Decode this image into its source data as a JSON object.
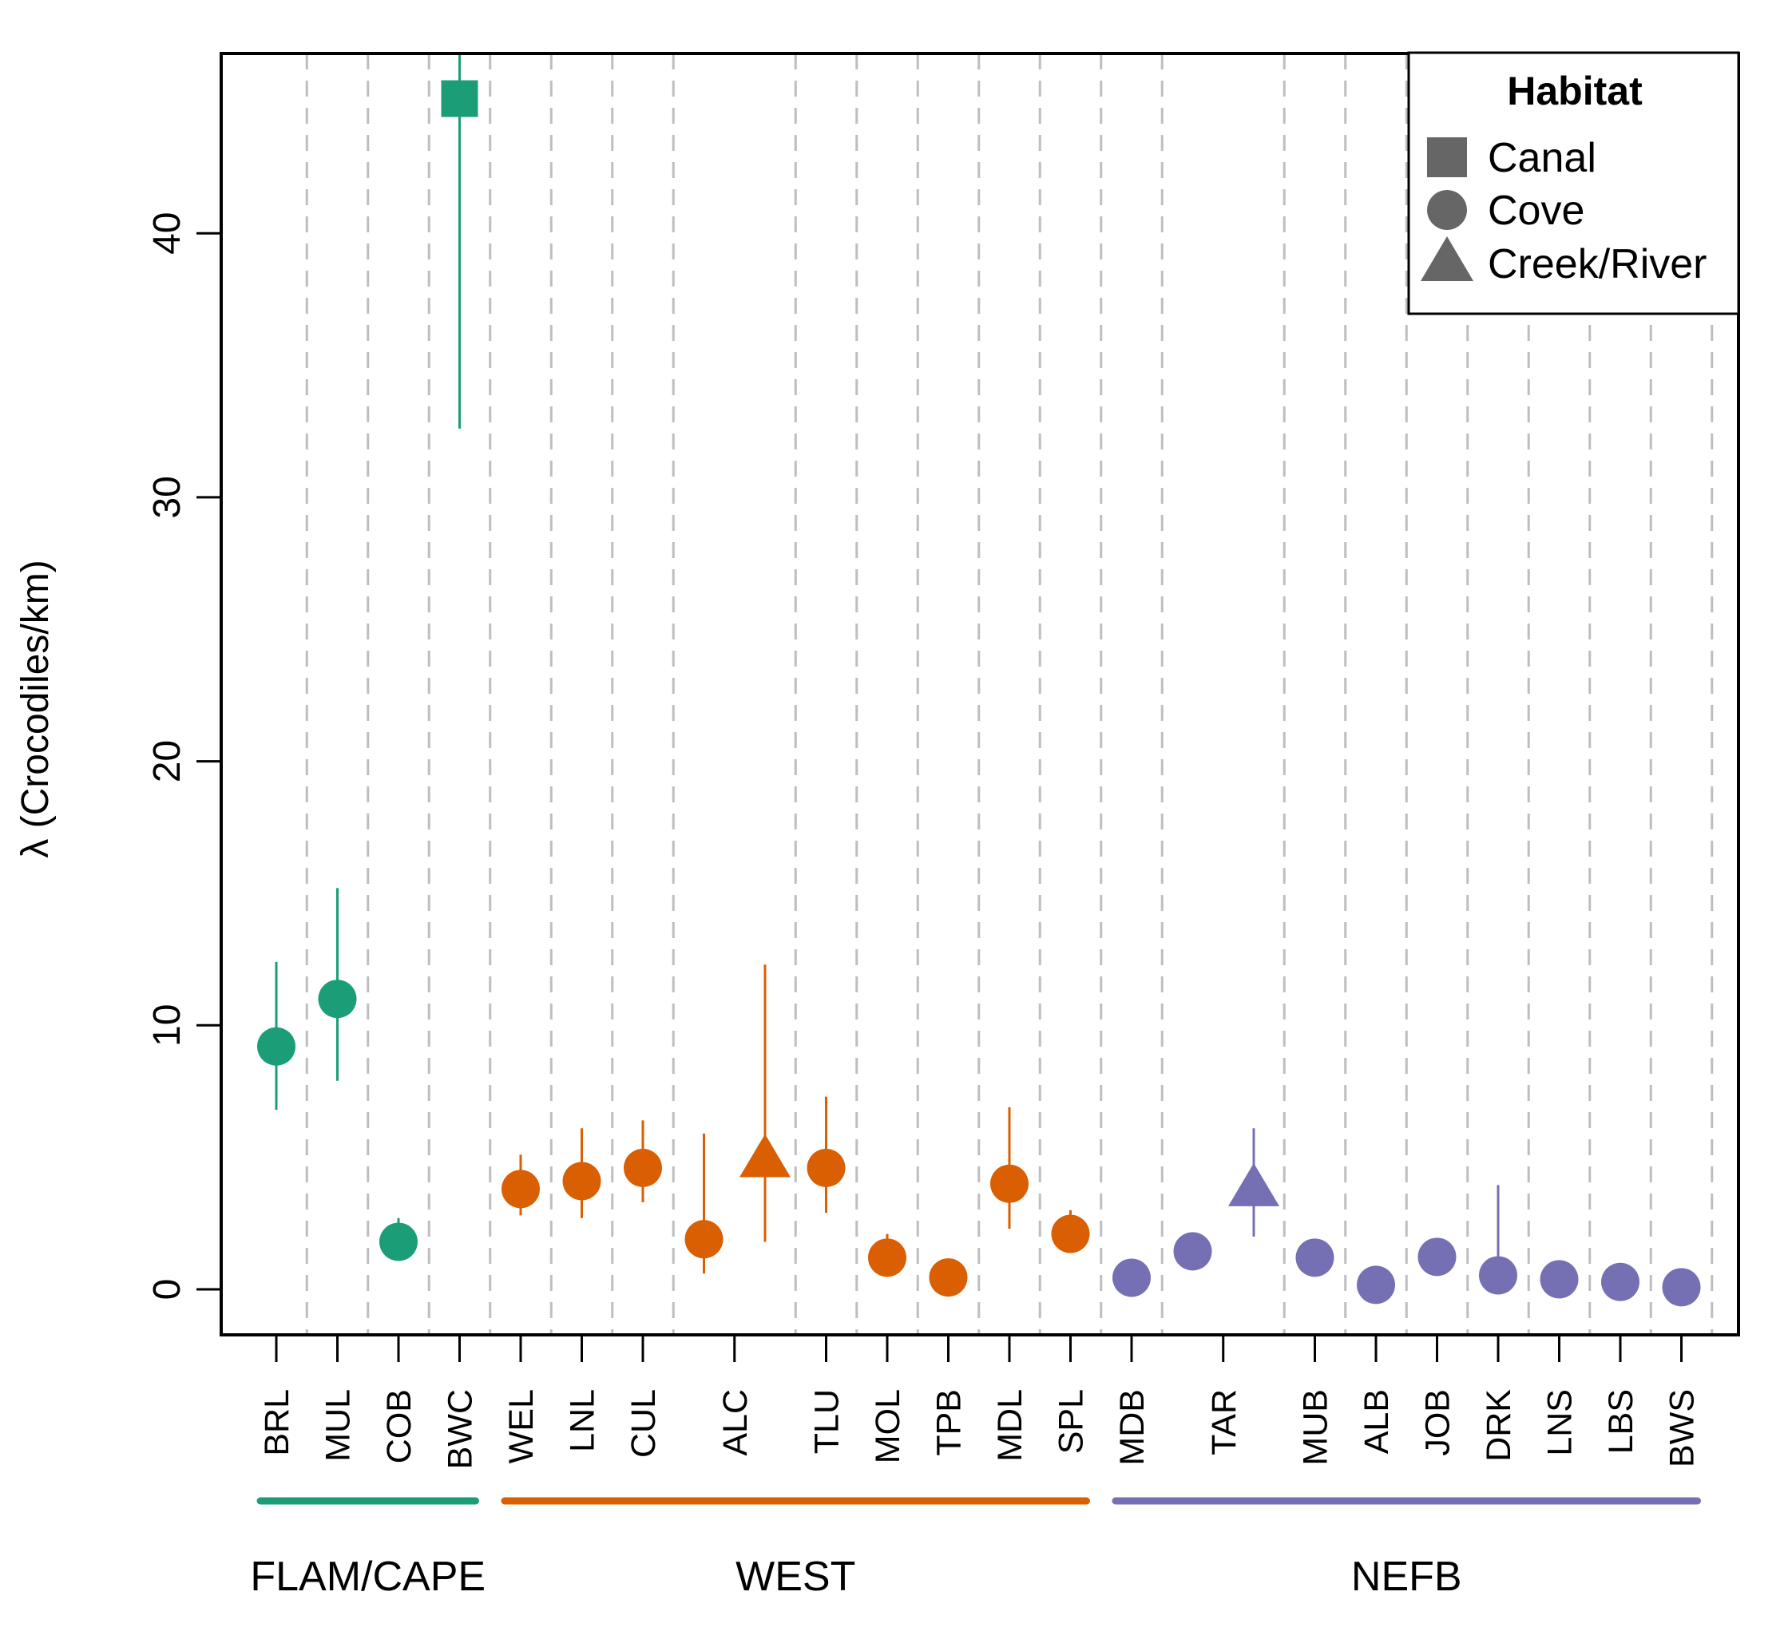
{
  "chart_data": {
    "type": "scatter",
    "subtype": "point-estimate-with-error-bars",
    "title": "",
    "xlabel": "",
    "ylabel": "λ (Crocodiles/km)",
    "ylim": [
      -1.6,
      46.8
    ],
    "yticks": [
      0,
      10,
      20,
      30,
      40
    ],
    "ytick_labels": [
      "0",
      "10",
      "20",
      "30",
      "40"
    ],
    "grid": "vertical dashed separators between sites",
    "x_positions_count": 24,
    "site_ticks": [
      {
        "label": "BRL",
        "pos": 1
      },
      {
        "label": "MUL",
        "pos": 2
      },
      {
        "label": "COB",
        "pos": 3
      },
      {
        "label": "BWC",
        "pos": 4
      },
      {
        "label": "WEL",
        "pos": 5
      },
      {
        "label": "LNL",
        "pos": 6
      },
      {
        "label": "CUL",
        "pos": 7
      },
      {
        "label": "ALC",
        "pos": 8.5
      },
      {
        "label": "TLU",
        "pos": 10
      },
      {
        "label": "MOL",
        "pos": 11
      },
      {
        "label": "TPB",
        "pos": 12
      },
      {
        "label": "MDL",
        "pos": 13
      },
      {
        "label": "SPL",
        "pos": 14
      },
      {
        "label": "MDB",
        "pos": 15
      },
      {
        "label": "TAR",
        "pos": 16.5
      },
      {
        "label": "MUB",
        "pos": 18
      },
      {
        "label": "ALB",
        "pos": 19
      },
      {
        "label": "JOB",
        "pos": 20
      },
      {
        "label": "DRK",
        "pos": 21
      },
      {
        "label": "LNS",
        "pos": 22
      },
      {
        "label": "LBS",
        "pos": 23
      },
      {
        "label": "BWS",
        "pos": 24
      }
    ],
    "separators": [
      1.5,
      2.5,
      3.5,
      4.5,
      5.5,
      6.5,
      7.5,
      9.5,
      10.5,
      11.5,
      12.5,
      13.5,
      14.5,
      15.5,
      17.5,
      18.5,
      19.5,
      20.5,
      21.5,
      22.5,
      23.5,
      24.5
    ],
    "groups": [
      {
        "name": "FLAM/CAPE",
        "color": "#1B9E77",
        "from": 1,
        "to": 4
      },
      {
        "name": "WEST",
        "color": "#D95F02",
        "from": 5,
        "to": 14
      },
      {
        "name": "NEFB",
        "color": "#7570B3",
        "from": 15,
        "to": 24
      }
    ],
    "series": [
      {
        "site": "BRL",
        "pos": 1,
        "group": "FLAM/CAPE",
        "habitat": "Cove",
        "value": 9.2,
        "lower": 6.8,
        "upper": 12.4
      },
      {
        "site": "MUL",
        "pos": 2,
        "group": "FLAM/CAPE",
        "habitat": "Cove",
        "value": 11.0,
        "lower": 7.9,
        "upper": 15.2
      },
      {
        "site": "COB",
        "pos": 3,
        "group": "FLAM/CAPE",
        "habitat": "Cove",
        "value": 1.8,
        "lower": 1.5,
        "upper": 2.7
      },
      {
        "site": "BWC",
        "pos": 4,
        "group": "FLAM/CAPE",
        "habitat": "Canal",
        "value": 45.1,
        "lower": 32.6,
        "upper": 47.5
      },
      {
        "site": "WEL",
        "pos": 5,
        "group": "WEST",
        "habitat": "Cove",
        "value": 3.8,
        "lower": 2.8,
        "upper": 5.1
      },
      {
        "site": "LNL",
        "pos": 6,
        "group": "WEST",
        "habitat": "Cove",
        "value": 4.1,
        "lower": 2.7,
        "upper": 6.1
      },
      {
        "site": "CUL",
        "pos": 7,
        "group": "WEST",
        "habitat": "Cove",
        "value": 4.6,
        "lower": 3.3,
        "upper": 6.4
      },
      {
        "site": "ALC",
        "pos": 8,
        "group": "WEST",
        "habitat": "Cove",
        "value": 1.9,
        "lower": 0.6,
        "upper": 5.9
      },
      {
        "site": "ALC",
        "pos": 9,
        "group": "WEST",
        "habitat": "Creek/River",
        "value": 4.9,
        "lower": 1.8,
        "upper": 12.3
      },
      {
        "site": "TLU",
        "pos": 10,
        "group": "WEST",
        "habitat": "Cove",
        "value": 4.6,
        "lower": 2.9,
        "upper": 7.3
      },
      {
        "site": "MOL",
        "pos": 11,
        "group": "WEST",
        "habitat": "Cove",
        "value": 1.2,
        "lower": 0.8,
        "upper": 2.1
      },
      {
        "site": "TPB",
        "pos": 12,
        "group": "WEST",
        "habitat": "Cove",
        "value": 0.45,
        "lower": 0.2,
        "upper": 0.8
      },
      {
        "site": "MDL",
        "pos": 13,
        "group": "WEST",
        "habitat": "Cove",
        "value": 4.0,
        "lower": 2.3,
        "upper": 6.9
      },
      {
        "site": "SPL",
        "pos": 14,
        "group": "WEST",
        "habitat": "Cove",
        "value": 2.1,
        "lower": 1.6,
        "upper": 3.0
      },
      {
        "site": "MDB",
        "pos": 15,
        "group": "NEFB",
        "habitat": "Cove",
        "value": 0.44,
        "lower": 0.2,
        "upper": 0.8
      },
      {
        "site": "TAR",
        "pos": 16,
        "group": "NEFB",
        "habitat": "Cove",
        "value": 1.44,
        "lower": 1.0,
        "upper": 1.9
      },
      {
        "site": "TAR",
        "pos": 17,
        "group": "NEFB",
        "habitat": "Creek/River",
        "value": 3.8,
        "lower": 2.0,
        "upper": 6.1
      },
      {
        "site": "MUB",
        "pos": 18,
        "group": "NEFB",
        "habitat": "Cove",
        "value": 1.2,
        "lower": 0.8,
        "upper": 1.6
      },
      {
        "site": "ALB",
        "pos": 19,
        "group": "NEFB",
        "habitat": "Cove",
        "value": 0.17,
        "lower": 0.05,
        "upper": 0.4
      },
      {
        "site": "JOB",
        "pos": 20,
        "group": "NEFB",
        "habitat": "Cove",
        "value": 1.23,
        "lower": 0.8,
        "upper": 1.6
      },
      {
        "site": "DRK",
        "pos": 21,
        "group": "NEFB",
        "habitat": "Cove",
        "value": 0.53,
        "lower": 0.2,
        "upper": 3.95
      },
      {
        "site": "LNS",
        "pos": 22,
        "group": "NEFB",
        "habitat": "Cove",
        "value": 0.38,
        "lower": 0.15,
        "upper": 0.7
      },
      {
        "site": "LBS",
        "pos": 23,
        "group": "NEFB",
        "habitat": "Cove",
        "value": 0.28,
        "lower": 0.1,
        "upper": 0.6
      },
      {
        "site": "BWS",
        "pos": 24,
        "group": "NEFB",
        "habitat": "Cove",
        "value": 0.08,
        "lower": 0.0,
        "upper": 0.3
      }
    ],
    "legend": {
      "title": "Habitat",
      "position": "top-right",
      "color": "#666666",
      "entries": [
        {
          "label": "Canal",
          "shape": "square"
        },
        {
          "label": "Cove",
          "shape": "circle"
        },
        {
          "label": "Creek/River",
          "shape": "triangle"
        }
      ]
    },
    "colors": {
      "separator": "#BEBEBE",
      "axis": "#000000"
    }
  }
}
